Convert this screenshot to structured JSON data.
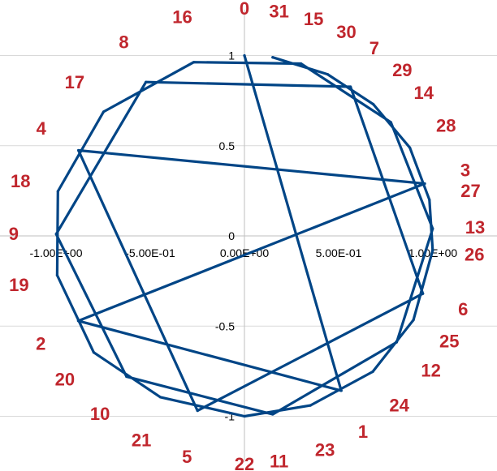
{
  "colors": {
    "series": "#004586",
    "labels": "#c0262d",
    "grid": "#d9d9d9",
    "axis": "#bfbfbf"
  },
  "chart_data": {
    "type": "scatter",
    "title": "",
    "xlabel": "",
    "ylabel": "",
    "xlim": [
      -1.25,
      1.25
    ],
    "ylim": [
      -1.1,
      1.1
    ],
    "x_ticks": [
      {
        "value": -1.0,
        "label": "-1.00E+00"
      },
      {
        "value": -0.5,
        "label": "-5.00E-01"
      },
      {
        "value": 0.0,
        "label": "0.00E+00"
      },
      {
        "value": 0.5,
        "label": "5.00E-01"
      },
      {
        "value": 1.0,
        "label": "1.00E+00"
      }
    ],
    "y_ticks": [
      {
        "value": 1.0,
        "label": "1"
      },
      {
        "value": 0.5,
        "label": "0.5"
      },
      {
        "value": 0.0,
        "label": "0"
      },
      {
        "value": -0.5,
        "label": "-0.5"
      },
      {
        "value": -1.0,
        "label": "-1"
      }
    ],
    "grid": "horizontal",
    "legend": "none",
    "series": [
      {
        "connected": true,
        "points": [
          {
            "label": "0",
            "x": 0.0,
            "y": 1.0
          },
          {
            "label": "1",
            "x": 0.514,
            "y": -0.858
          },
          {
            "label": "2",
            "x": -0.882,
            "y": -0.471
          },
          {
            "label": "3",
            "x": 0.957,
            "y": 0.29
          },
          {
            "label": "4",
            "x": -0.881,
            "y": 0.474
          },
          {
            "label": "5",
            "x": -0.249,
            "y": -0.969
          },
          {
            "label": "6",
            "x": 0.947,
            "y": -0.32
          },
          {
            "label": "7",
            "x": 0.563,
            "y": 0.827
          },
          {
            "label": "8",
            "x": -0.523,
            "y": 0.853
          },
          {
            "label": "9",
            "x": -0.999,
            "y": 0.01
          },
          {
            "label": "10",
            "x": -0.626,
            "y": -0.78
          },
          {
            "label": "11",
            "x": 0.15,
            "y": -0.989
          },
          {
            "label": "12",
            "x": 0.808,
            "y": -0.589
          },
          {
            "label": "13",
            "x": 0.999,
            "y": 0.04
          },
          {
            "label": "14",
            "x": 0.777,
            "y": 0.63
          },
          {
            "label": "15",
            "x": 0.3,
            "y": 0.955
          },
          {
            "label": "16",
            "x": -0.269,
            "y": 0.963
          },
          {
            "label": "17",
            "x": -0.748,
            "y": 0.688
          },
          {
            "label": "18",
            "x": -0.99,
            "y": 0.247
          },
          {
            "label": "19",
            "x": -0.994,
            "y": -0.218
          },
          {
            "label": "20",
            "x": -0.8,
            "y": -0.646
          },
          {
            "label": "21",
            "x": -0.446,
            "y": -0.894
          },
          {
            "label": "22",
            "x": 0.0,
            "y": -1.0
          },
          {
            "label": "23",
            "x": 0.35,
            "y": -0.94
          },
          {
            "label": "24",
            "x": 0.681,
            "y": -0.753
          },
          {
            "label": "25",
            "x": 0.897,
            "y": -0.466
          },
          {
            "label": "26",
            "x": 0.999,
            "y": -0.08
          },
          {
            "label": "27",
            "x": 0.982,
            "y": 0.2
          },
          {
            "label": "28",
            "x": 0.878,
            "y": 0.489
          },
          {
            "label": "29",
            "x": 0.684,
            "y": 0.73
          },
          {
            "label": "30",
            "x": 0.441,
            "y": 0.896
          },
          {
            "label": "31",
            "x": 0.15,
            "y": 0.99
          }
        ]
      }
    ]
  }
}
